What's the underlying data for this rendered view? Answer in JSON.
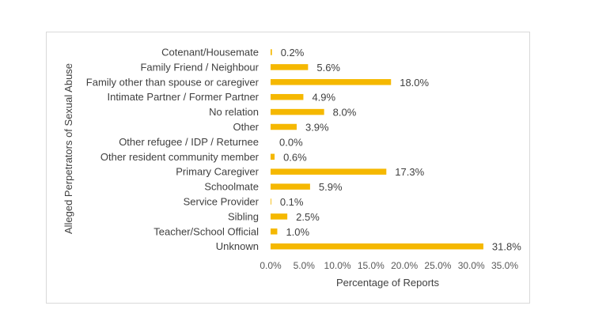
{
  "chart_data": {
    "type": "bar",
    "orientation": "horizontal",
    "xlabel": "Percentage of Reports",
    "ylabel": "Alleged Perpetrators of Sexual Abuse",
    "categories": [
      "Cotenant/Housemate",
      "Family Friend / Neighbour",
      "Family other than spouse or caregiver",
      "Intimate Partner / Former Partner",
      "No relation",
      "Other",
      "Other refugee / IDP / Returnee",
      "Other resident community member",
      "Primary Caregiver",
      "Schoolmate",
      "Service Provider",
      "Sibling",
      "Teacher/School Official",
      "Unknown"
    ],
    "values": [
      0.2,
      5.6,
      18.0,
      4.9,
      8.0,
      3.9,
      0.0,
      0.6,
      17.3,
      5.9,
      0.1,
      2.5,
      1.0,
      31.8
    ],
    "value_labels": [
      "0.2%",
      "5.6%",
      "18.0%",
      "4.9%",
      "8.0%",
      "3.9%",
      "0.0%",
      "0.6%",
      "17.3%",
      "5.9%",
      "0.1%",
      "2.5%",
      "1.0%",
      "31.8%"
    ],
    "xlim": [
      0,
      35
    ],
    "xticks": [
      "0.0%",
      "5.0%",
      "10.0%",
      "15.0%",
      "20.0%",
      "25.0%",
      "30.0%",
      "35.0%"
    ],
    "bar_color": "#F5B800",
    "grid": false,
    "legend": "none"
  }
}
